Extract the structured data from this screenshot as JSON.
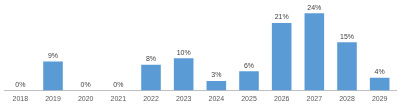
{
  "chart_data": {
    "type": "bar",
    "categories": [
      "2018",
      "2019",
      "2020",
      "2021",
      "2022",
      "2023",
      "2024",
      "2025",
      "2026",
      "2027",
      "2028",
      "2029"
    ],
    "values": [
      0,
      9,
      0,
      0,
      8,
      10,
      3,
      6,
      21,
      24,
      15,
      4
    ],
    "value_labels": [
      "0%",
      "9%",
      "0%",
      "0%",
      "8%",
      "10%",
      "3%",
      "6%",
      "21%",
      "24%",
      "15%",
      "4%"
    ],
    "color": "#5b9bd5",
    "ylim": [
      0,
      25
    ],
    "grid": false,
    "data_labels": true,
    "tick_labels": "x"
  }
}
